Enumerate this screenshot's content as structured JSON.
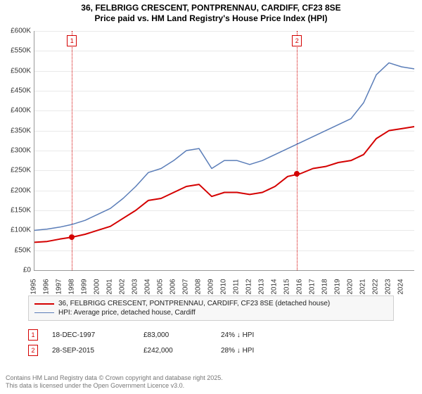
{
  "title": {
    "line1": "36, FELBRIGG CRESCENT, PONTPRENNAU, CARDIFF, CF23 8SE",
    "line2": "Price paid vs. HM Land Registry's House Price Index (HPI)",
    "fontsize": 12
  },
  "chart": {
    "type": "line",
    "background_color": "#ffffff",
    "grid_color": "#e9e9e9",
    "axis_color": "#999999",
    "x": {
      "min": 1995,
      "max": 2025,
      "ticks": [
        1995,
        1996,
        1997,
        1998,
        1999,
        2000,
        2001,
        2002,
        2003,
        2004,
        2005,
        2006,
        2007,
        2008,
        2009,
        2010,
        2011,
        2012,
        2013,
        2014,
        2015,
        2016,
        2017,
        2018,
        2019,
        2020,
        2021,
        2022,
        2023,
        2024
      ],
      "label_fontsize": 10,
      "rotation": -90
    },
    "y": {
      "min": 0,
      "max": 600000,
      "ticks": [
        0,
        50000,
        100000,
        150000,
        200000,
        250000,
        300000,
        350000,
        400000,
        450000,
        500000,
        550000,
        600000
      ],
      "tick_labels": [
        "£0",
        "£50K",
        "£100K",
        "£150K",
        "£200K",
        "£250K",
        "£300K",
        "£350K",
        "£400K",
        "£450K",
        "£500K",
        "£550K",
        "£600K"
      ],
      "label_fontsize": 10
    },
    "series": [
      {
        "name": "price_paid",
        "label": "36, FELBRIGG CRESCENT, PONTPRENNAU, CARDIFF, CF23 8SE (detached house)",
        "color": "#d40000",
        "line_width": 2,
        "x": [
          1995,
          1996,
          1997,
          1998,
          1999,
          2000,
          2001,
          2002,
          2003,
          2004,
          2005,
          2006,
          2007,
          2008,
          2009,
          2010,
          2011,
          2012,
          2013,
          2014,
          2015,
          2016,
          2017,
          2018,
          2019,
          2020,
          2021,
          2022,
          2023,
          2024,
          2025
        ],
        "y": [
          70000,
          72000,
          78000,
          83000,
          90000,
          100000,
          110000,
          130000,
          150000,
          175000,
          180000,
          195000,
          210000,
          215000,
          185000,
          195000,
          195000,
          190000,
          195000,
          210000,
          235000,
          242000,
          255000,
          260000,
          270000,
          275000,
          290000,
          330000,
          350000,
          355000,
          360000
        ]
      },
      {
        "name": "hpi",
        "label": "HPI: Average price, detached house, Cardiff",
        "color": "#5a7db8",
        "line_width": 1.5,
        "x": [
          1995,
          1996,
          1997,
          1998,
          1999,
          2000,
          2001,
          2002,
          2003,
          2004,
          2005,
          2006,
          2007,
          2008,
          2009,
          2010,
          2011,
          2012,
          2013,
          2014,
          2015,
          2016,
          2017,
          2018,
          2019,
          2020,
          2021,
          2022,
          2023,
          2024,
          2025
        ],
        "y": [
          100000,
          103000,
          108000,
          115000,
          125000,
          140000,
          155000,
          180000,
          210000,
          245000,
          255000,
          275000,
          300000,
          305000,
          255000,
          275000,
          275000,
          265000,
          275000,
          290000,
          305000,
          320000,
          335000,
          350000,
          365000,
          380000,
          420000,
          490000,
          520000,
          510000,
          505000
        ]
      }
    ],
    "sale_markers": [
      {
        "id": "1",
        "xyear": 1997.96,
        "date": "18-DEC-1997",
        "price": "£83,000",
        "delta": "24% ↓ HPI",
        "y": 83000
      },
      {
        "id": "2",
        "xyear": 2015.74,
        "date": "28-SEP-2015",
        "price": "£242,000",
        "delta": "28% ↓ HPI",
        "y": 242000
      }
    ],
    "marker_line_color": "#d40000",
    "marker_box_border": "#d40000",
    "marker_box_bg": "#ffffff",
    "marker_box_text": "#d40000"
  },
  "legend": {
    "border_color": "#cfcfcf",
    "background_color": "#f7f7f7",
    "fontsize": 10
  },
  "footer": {
    "line1": "Contains HM Land Registry data © Crown copyright and database right 2025.",
    "line2": "This data is licensed under the Open Government Licence v3.0.",
    "color": "#777777",
    "fontsize": 9
  }
}
